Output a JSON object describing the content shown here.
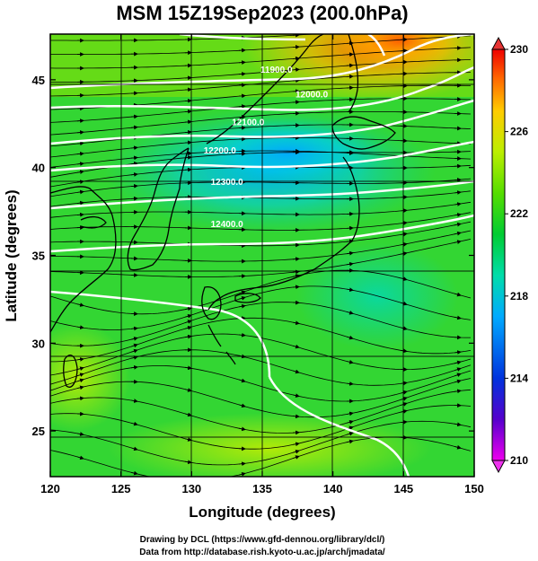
{
  "title": "MSM 15Z19Sep2023 (200.0hPa)",
  "xlabel": "Longitude (degrees)",
  "ylabel": "Latitude  (degrees)",
  "credits": [
    "Drawing by DCL (https://www.gfd-dennou.org/library/dcl/)",
    "Data from http://database.rish.kyoto-u.ac.jp/arch/jmadata/"
  ],
  "chart_data": {
    "type": "heatmap",
    "variable_shading": "temperature (colorbar)",
    "overlay": "streamlines and geopotential height contours",
    "xlim": [
      120,
      150
    ],
    "ylim": [
      22.4,
      47.6
    ],
    "x_ticks": [
      120,
      125,
      130,
      135,
      140,
      145,
      150
    ],
    "y_ticks": [
      25,
      30,
      35,
      40,
      45
    ],
    "colorbar": {
      "min": 210,
      "max": 230,
      "ticks": [
        210,
        214,
        218,
        222,
        226,
        230
      ],
      "colors": [
        "#ee00ee",
        "#5500cc",
        "#0033dd",
        "#00aaff",
        "#00ddaa",
        "#00cc33",
        "#55dd00",
        "#bbee00",
        "#ffcc00",
        "#ff6600",
        "#ee0000"
      ]
    },
    "contours": [
      {
        "label": "11900.0",
        "lon": 136.0,
        "lat": 45.4
      },
      {
        "label": "12000.0",
        "lon": 138.5,
        "lat": 44.0
      },
      {
        "label": "12100.0",
        "lon": 134.0,
        "lat": 42.4
      },
      {
        "label": "12200.0",
        "lon": 132.0,
        "lat": 40.8
      },
      {
        "label": "12300.0",
        "lon": 132.5,
        "lat": 39.0
      },
      {
        "label": "12400.0",
        "lon": 132.5,
        "lat": 36.6
      }
    ]
  }
}
